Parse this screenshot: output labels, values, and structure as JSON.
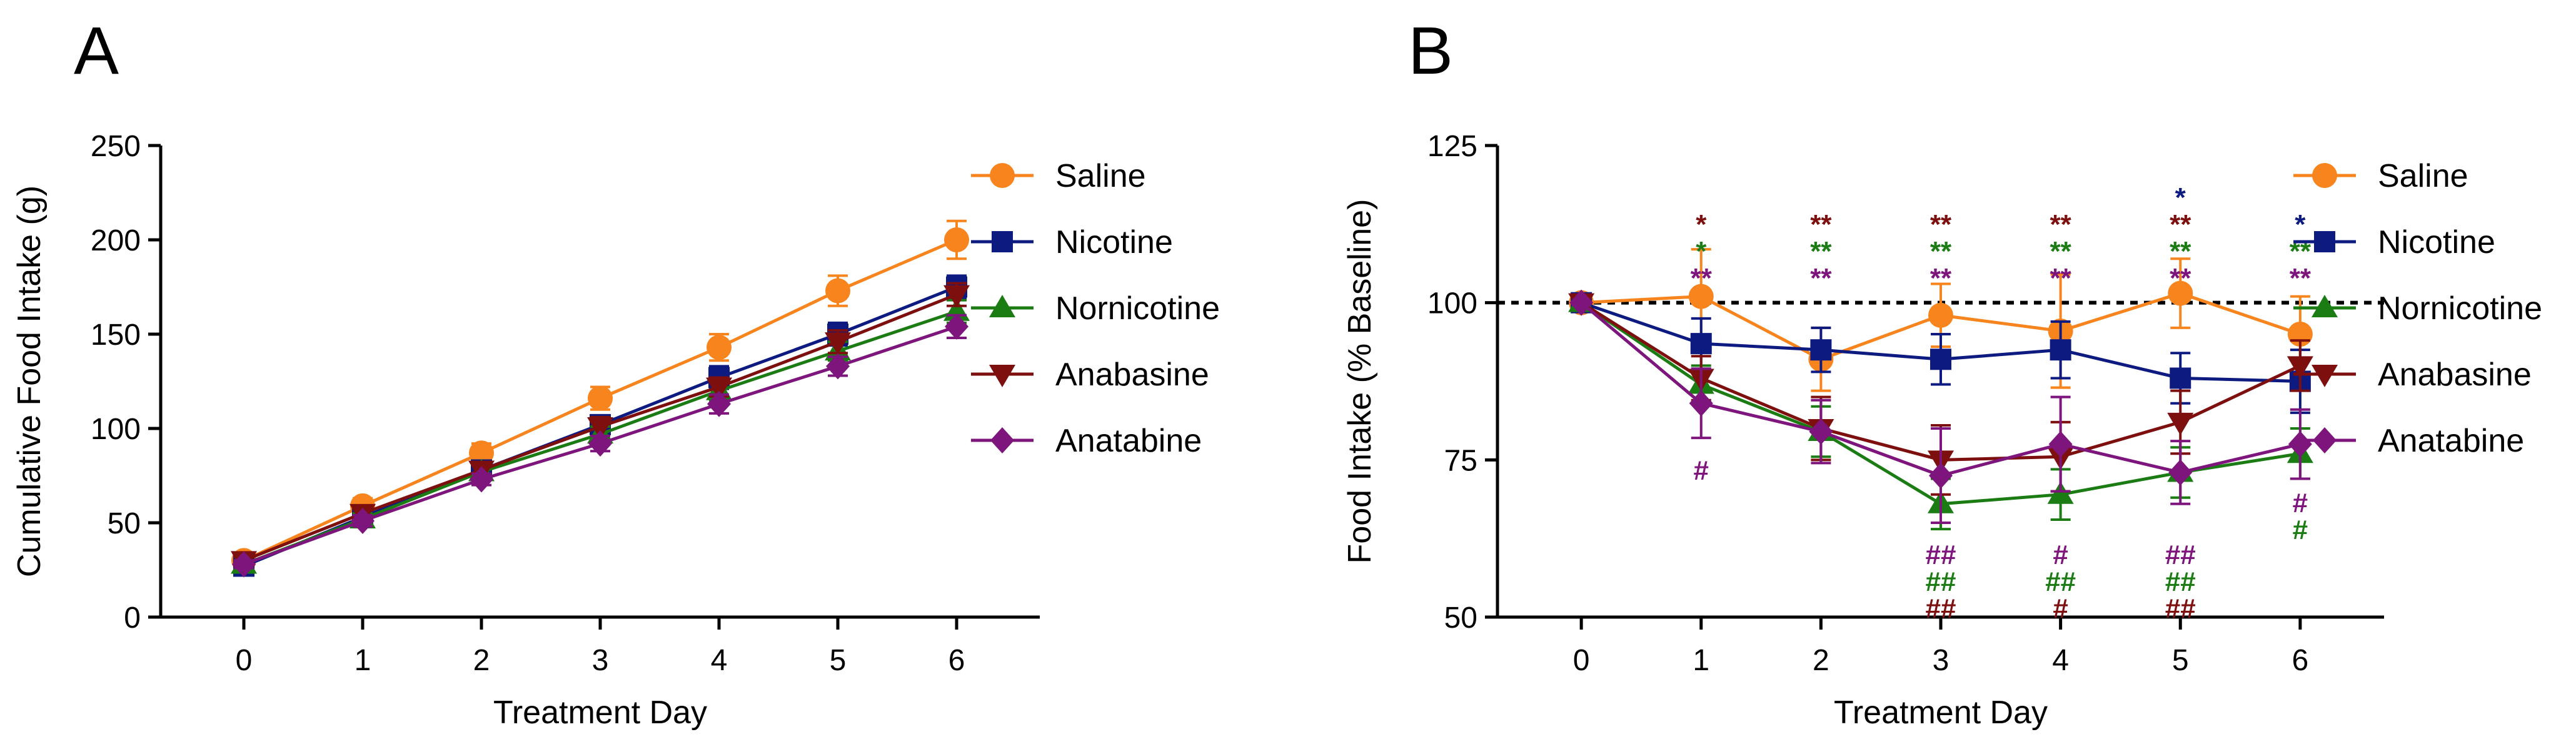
{
  "figure": {
    "colors": {
      "saline": "#F7841C",
      "nicotine": "#0D1A80",
      "nornicotine": "#1B7C14",
      "anabasine": "#7E0F0F",
      "anatabine": "#7D157D"
    },
    "legend": [
      "Saline",
      "Nicotine",
      "Nornicotine",
      "Anabasine",
      "Anatabine"
    ]
  },
  "chart_data": [
    {
      "panel": "A",
      "type": "line",
      "xlabel": "Treatment Day",
      "ylabel": "Cumulative Food Intake (g)",
      "xlim": [
        -0.7,
        6.7
      ],
      "ylim": [
        0,
        250
      ],
      "xticks": [
        0,
        1,
        2,
        3,
        4,
        5,
        6
      ],
      "yticks": [
        0,
        50,
        100,
        150,
        200,
        250
      ],
      "legend_position": "right",
      "x": [
        0,
        1,
        2,
        3,
        4,
        5,
        6
      ],
      "series": [
        {
          "name": "Saline",
          "key": "saline",
          "marker": "circle",
          "values": [
            30,
            59,
            87,
            116,
            143,
            173,
            200
          ],
          "errors": [
            3,
            4,
            5,
            6,
            7,
            8,
            10
          ]
        },
        {
          "name": "Nicotine",
          "key": "nicotine",
          "marker": "square",
          "values": [
            27,
            53,
            78,
            102,
            127,
            150,
            175
          ],
          "errors": [
            3,
            3,
            4,
            5,
            6,
            6,
            6
          ]
        },
        {
          "name": "Nornicotine",
          "key": "nornicotine",
          "marker": "triangle-up",
          "values": [
            28,
            52,
            77,
            97,
            120,
            141,
            162
          ],
          "errors": [
            2,
            3,
            4,
            4,
            5,
            5,
            6
          ]
        },
        {
          "name": "Anabasine",
          "key": "anabasine",
          "marker": "triangle-down",
          "values": [
            30,
            55,
            78,
            101,
            122,
            146,
            171
          ],
          "errors": [
            2,
            3,
            4,
            5,
            5,
            6,
            6
          ]
        },
        {
          "name": "Anatabine",
          "key": "anatabine",
          "marker": "diamond",
          "values": [
            28,
            51,
            73,
            92,
            113,
            133,
            154
          ],
          "errors": [
            2,
            3,
            3,
            4,
            5,
            5,
            6
          ]
        }
      ]
    },
    {
      "panel": "B",
      "type": "line",
      "xlabel": "Treatment Day",
      "ylabel": "Food Intake (% Baseline)",
      "xlim": [
        -0.7,
        6.7
      ],
      "ylim": [
        50,
        125
      ],
      "xticks": [
        0,
        1,
        2,
        3,
        4,
        5,
        6
      ],
      "yticks": [
        50,
        75,
        100,
        125
      ],
      "reference_line": 100,
      "legend_position": "right",
      "x": [
        0,
        1,
        2,
        3,
        4,
        5,
        6
      ],
      "series": [
        {
          "name": "Saline",
          "key": "saline",
          "marker": "circle",
          "values": [
            100,
            101,
            91,
            98,
            95.5,
            101.5,
            95
          ],
          "errors": [
            0,
            7.5,
            5,
            5,
            9,
            5.5,
            6
          ]
        },
        {
          "name": "Nicotine",
          "key": "nicotine",
          "marker": "square",
          "values": [
            100,
            93.5,
            92.5,
            91,
            92.5,
            88,
            87.5
          ],
          "errors": [
            0,
            4,
            3.5,
            4,
            4.5,
            4,
            5
          ]
        },
        {
          "name": "Nornicotine",
          "key": "nornicotine",
          "marker": "triangle-up",
          "values": [
            100,
            87,
            79.5,
            68,
            69.5,
            73,
            76
          ],
          "errors": [
            0,
            3,
            4,
            4,
            4,
            4,
            4
          ]
        },
        {
          "name": "Anabasine",
          "key": "anabasine",
          "marker": "triangle-down",
          "values": [
            100,
            88,
            80,
            75,
            75.5,
            81,
            90
          ],
          "errors": [
            0,
            3.5,
            5,
            5.5,
            5.5,
            5,
            4
          ]
        },
        {
          "name": "Anatabine",
          "key": "anatabine",
          "marker": "diamond",
          "values": [
            100,
            84,
            79.5,
            72.5,
            77.5,
            73,
            77.5
          ],
          "errors": [
            0,
            5.5,
            5,
            7.5,
            7.5,
            5,
            5.5
          ]
        }
      ],
      "annotations_above": [
        {
          "x": 1,
          "marks": [
            {
              "text": "*",
              "series": "anabasine"
            },
            {
              "text": "*",
              "series": "nornicotine"
            },
            {
              "text": "**",
              "series": "anatabine"
            }
          ]
        },
        {
          "x": 2,
          "marks": [
            {
              "text": "**",
              "series": "anabasine"
            },
            {
              "text": "**",
              "series": "nornicotine"
            },
            {
              "text": "**",
              "series": "anatabine"
            }
          ]
        },
        {
          "x": 3,
          "marks": [
            {
              "text": "**",
              "series": "anabasine"
            },
            {
              "text": "**",
              "series": "nornicotine"
            },
            {
              "text": "**",
              "series": "anatabine"
            }
          ]
        },
        {
          "x": 4,
          "marks": [
            {
              "text": "**",
              "series": "anabasine"
            },
            {
              "text": "**",
              "series": "nornicotine"
            },
            {
              "text": "**",
              "series": "anatabine"
            }
          ]
        },
        {
          "x": 5,
          "marks": [
            {
              "text": "*",
              "series": "nicotine"
            },
            {
              "text": "**",
              "series": "anabasine"
            },
            {
              "text": "**",
              "series": "nornicotine"
            },
            {
              "text": "**",
              "series": "anatabine"
            }
          ]
        },
        {
          "x": 6,
          "marks": [
            {
              "text": "*",
              "series": "nicotine"
            },
            {
              "text": "**",
              "series": "nornicotine"
            },
            {
              "text": "**",
              "series": "anatabine"
            }
          ]
        }
      ],
      "annotations_below": [
        {
          "x": 1,
          "marks": [
            {
              "text": "#",
              "series": "anatabine"
            }
          ]
        },
        {
          "x": 3,
          "marks": [
            {
              "text": "##",
              "series": "anatabine"
            },
            {
              "text": "##",
              "series": "nornicotine"
            },
            {
              "text": "##",
              "series": "anabasine"
            }
          ]
        },
        {
          "x": 4,
          "marks": [
            {
              "text": "#",
              "series": "anatabine"
            },
            {
              "text": "##",
              "series": "nornicotine"
            },
            {
              "text": "#",
              "series": "anabasine"
            }
          ]
        },
        {
          "x": 5,
          "marks": [
            {
              "text": "##",
              "series": "anatabine"
            },
            {
              "text": "##",
              "series": "nornicotine"
            },
            {
              "text": "##",
              "series": "anabasine"
            }
          ]
        },
        {
          "x": 6,
          "marks": [
            {
              "text": "#",
              "series": "anatabine"
            },
            {
              "text": "#",
              "series": "nornicotine"
            }
          ]
        }
      ]
    }
  ]
}
